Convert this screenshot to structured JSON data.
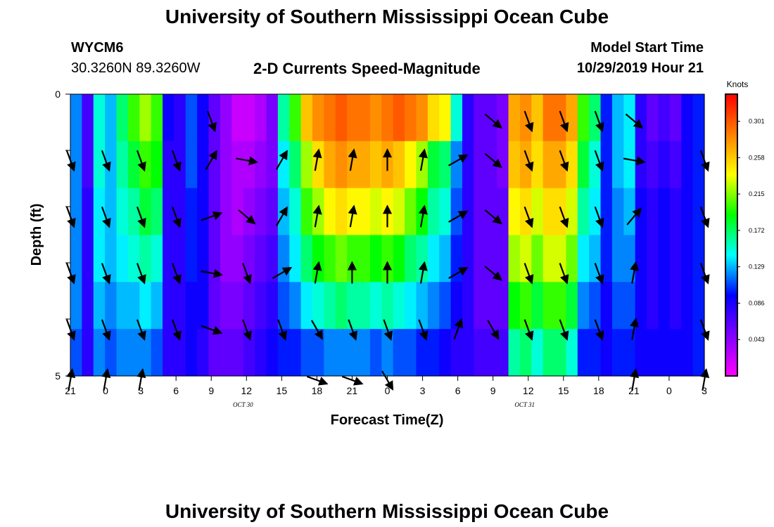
{
  "header": {
    "title": "University of Southern Mississippi Ocean Cube",
    "footer_title": "University of Southern Mississippi Ocean Cube",
    "station_id": "WYCM6",
    "station_coords": "30.3260N 89.3260W",
    "chart_title": "2-D Currents Speed-Magnitude",
    "model_label": "Model Start Time",
    "model_time": "10/29/2019 Hour 21"
  },
  "chart_data": {
    "type": "heatmap",
    "title": "2-D Currents Speed-Magnitude",
    "xlabel": "Forecast Time(Z)",
    "ylabel": "Depth (ft)",
    "x_tick_labels": [
      "21",
      "0",
      "3",
      "6",
      "9",
      "12",
      "15",
      "18",
      "21",
      "0",
      "3",
      "6",
      "9",
      "12",
      "15",
      "18",
      "21",
      "0",
      "3"
    ],
    "x_hours": [
      0,
      3,
      6,
      9,
      12,
      15,
      18,
      21,
      24,
      27,
      30,
      33,
      36,
      39,
      42,
      45,
      48,
      51,
      54
    ],
    "date_labels": [
      {
        "label": "OCT 30",
        "hour": 15
      },
      {
        "label": "OCT 31",
        "hour": 39
      }
    ],
    "ylim": [
      0,
      5
    ],
    "y_tick_labels": [
      "0",
      "5"
    ],
    "colorbar": {
      "unit": "Knots",
      "ticks": [
        0.301,
        0.258,
        0.215,
        0.172,
        0.129,
        0.086,
        0.043
      ],
      "tick_labels": [
        "0.301",
        "0.258",
        "0.215",
        "0.172",
        "0.129",
        "0.086",
        "0.043"
      ],
      "range": [
        0,
        0.333
      ],
      "colors": [
        "#ff00ff",
        "#8000ff",
        "#0000ff",
        "#00ffff",
        "#00ff00",
        "#ffff00",
        "#ff8000",
        "#ff0000"
      ]
    },
    "grid": false,
    "speed_columns_hours": [
      0,
      1,
      2,
      3,
      4,
      5,
      6,
      7,
      8,
      9,
      10,
      11,
      12,
      13,
      14,
      15,
      16,
      17,
      18,
      19,
      20,
      21,
      22,
      23,
      24,
      25,
      26,
      27,
      28,
      29,
      30,
      31,
      32,
      33,
      34,
      35,
      36,
      37,
      38,
      39,
      40,
      41,
      42,
      43,
      44,
      45,
      46,
      47,
      48,
      49,
      50,
      51,
      52,
      53,
      54
    ],
    "speed_rows": [
      [
        0.12,
        0.07,
        0.15,
        0.13,
        0.17,
        0.2,
        0.22,
        0.2,
        0.09,
        0.08,
        0.11,
        0.09,
        0.06,
        0.04,
        0.02,
        0.02,
        0.03,
        0.05,
        0.16,
        0.2,
        0.26,
        0.28,
        0.29,
        0.3,
        0.29,
        0.29,
        0.28,
        0.29,
        0.3,
        0.29,
        0.28,
        0.25,
        0.24,
        0.15,
        0.08,
        0.06,
        0.06,
        0.05,
        0.27,
        0.28,
        0.26,
        0.29,
        0.29,
        0.27,
        0.2,
        0.17,
        0.1,
        0.13,
        0.14,
        0.08,
        0.06,
        0.07,
        0.06,
        0.09,
        0.1
      ],
      [
        0.12,
        0.07,
        0.15,
        0.13,
        0.16,
        0.18,
        0.2,
        0.19,
        0.08,
        0.08,
        0.11,
        0.09,
        0.06,
        0.04,
        0.03,
        0.03,
        0.04,
        0.05,
        0.14,
        0.17,
        0.22,
        0.25,
        0.27,
        0.28,
        0.27,
        0.27,
        0.26,
        0.27,
        0.26,
        0.24,
        0.22,
        0.18,
        0.17,
        0.12,
        0.08,
        0.06,
        0.06,
        0.05,
        0.26,
        0.27,
        0.25,
        0.27,
        0.27,
        0.25,
        0.18,
        0.15,
        0.1,
        0.13,
        0.14,
        0.08,
        0.07,
        0.08,
        0.07,
        0.09,
        0.1
      ],
      [
        0.12,
        0.08,
        0.14,
        0.13,
        0.15,
        0.16,
        0.18,
        0.17,
        0.08,
        0.08,
        0.1,
        0.09,
        0.06,
        0.04,
        0.03,
        0.04,
        0.05,
        0.06,
        0.13,
        0.15,
        0.2,
        0.22,
        0.24,
        0.25,
        0.24,
        0.24,
        0.23,
        0.24,
        0.23,
        0.21,
        0.19,
        0.16,
        0.15,
        0.11,
        0.08,
        0.06,
        0.06,
        0.06,
        0.24,
        0.25,
        0.23,
        0.25,
        0.25,
        0.23,
        0.16,
        0.14,
        0.1,
        0.12,
        0.13,
        0.09,
        0.08,
        0.09,
        0.08,
        0.09,
        0.1
      ],
      [
        0.12,
        0.08,
        0.14,
        0.13,
        0.14,
        0.15,
        0.16,
        0.15,
        0.08,
        0.08,
        0.1,
        0.09,
        0.06,
        0.04,
        0.04,
        0.05,
        0.06,
        0.07,
        0.12,
        0.14,
        0.17,
        0.19,
        0.2,
        0.21,
        0.2,
        0.2,
        0.19,
        0.2,
        0.19,
        0.17,
        0.16,
        0.14,
        0.13,
        0.1,
        0.08,
        0.06,
        0.06,
        0.06,
        0.22,
        0.23,
        0.21,
        0.23,
        0.23,
        0.21,
        0.14,
        0.13,
        0.1,
        0.12,
        0.12,
        0.09,
        0.08,
        0.09,
        0.08,
        0.09,
        0.1
      ],
      [
        0.12,
        0.08,
        0.13,
        0.12,
        0.13,
        0.13,
        0.14,
        0.13,
        0.08,
        0.08,
        0.09,
        0.09,
        0.06,
        0.05,
        0.05,
        0.06,
        0.07,
        0.08,
        0.11,
        0.12,
        0.14,
        0.15,
        0.16,
        0.17,
        0.16,
        0.16,
        0.15,
        0.16,
        0.15,
        0.14,
        0.13,
        0.12,
        0.11,
        0.09,
        0.08,
        0.06,
        0.06,
        0.06,
        0.19,
        0.2,
        0.18,
        0.2,
        0.2,
        0.18,
        0.12,
        0.11,
        0.09,
        0.11,
        0.11,
        0.09,
        0.08,
        0.09,
        0.08,
        0.09,
        0.1
      ],
      [
        0.11,
        0.08,
        0.12,
        0.11,
        0.12,
        0.12,
        0.12,
        0.11,
        0.08,
        0.08,
        0.09,
        0.08,
        0.06,
        0.06,
        0.06,
        0.07,
        0.08,
        0.09,
        0.1,
        0.1,
        0.11,
        0.11,
        0.12,
        0.12,
        0.12,
        0.12,
        0.11,
        0.12,
        0.11,
        0.11,
        0.1,
        0.1,
        0.09,
        0.08,
        0.08,
        0.07,
        0.07,
        0.07,
        0.16,
        0.17,
        0.15,
        0.17,
        0.17,
        0.15,
        0.1,
        0.1,
        0.09,
        0.1,
        0.1,
        0.09,
        0.09,
        0.09,
        0.09,
        0.09,
        0.1
      ]
    ],
    "vector_columns_hours": [
      0,
      3,
      6,
      9,
      12,
      15,
      18,
      21,
      24,
      27,
      30,
      33,
      36,
      39,
      42,
      45,
      48,
      51,
      54
    ],
    "vector_rows_depth": [
      0.3,
      1.0,
      2.0,
      3.0,
      4.0,
      4.9
    ],
    "vector_angles_deg": [
      [
        null,
        null,
        null,
        null,
        160,
        null,
        null,
        null,
        null,
        null,
        null,
        null,
        130,
        160,
        160,
        160,
        130,
        null,
        null
      ],
      [
        160,
        160,
        160,
        160,
        30,
        100,
        30,
        10,
        10,
        0,
        10,
        60,
        130,
        160,
        160,
        160,
        100,
        null,
        160
      ],
      [
        160,
        160,
        160,
        160,
        70,
        130,
        30,
        10,
        10,
        0,
        10,
        60,
        130,
        160,
        160,
        160,
        40,
        null,
        160
      ],
      [
        160,
        160,
        160,
        160,
        100,
        160,
        60,
        10,
        0,
        0,
        10,
        60,
        130,
        160,
        160,
        160,
        10,
        null,
        160
      ],
      [
        160,
        160,
        160,
        160,
        110,
        160,
        160,
        150,
        160,
        160,
        160,
        20,
        150,
        160,
        160,
        160,
        10,
        null,
        160
      ],
      [
        10,
        10,
        10,
        null,
        null,
        null,
        null,
        110,
        110,
        150,
        null,
        null,
        null,
        null,
        null,
        null,
        10,
        null,
        10
      ]
    ]
  }
}
